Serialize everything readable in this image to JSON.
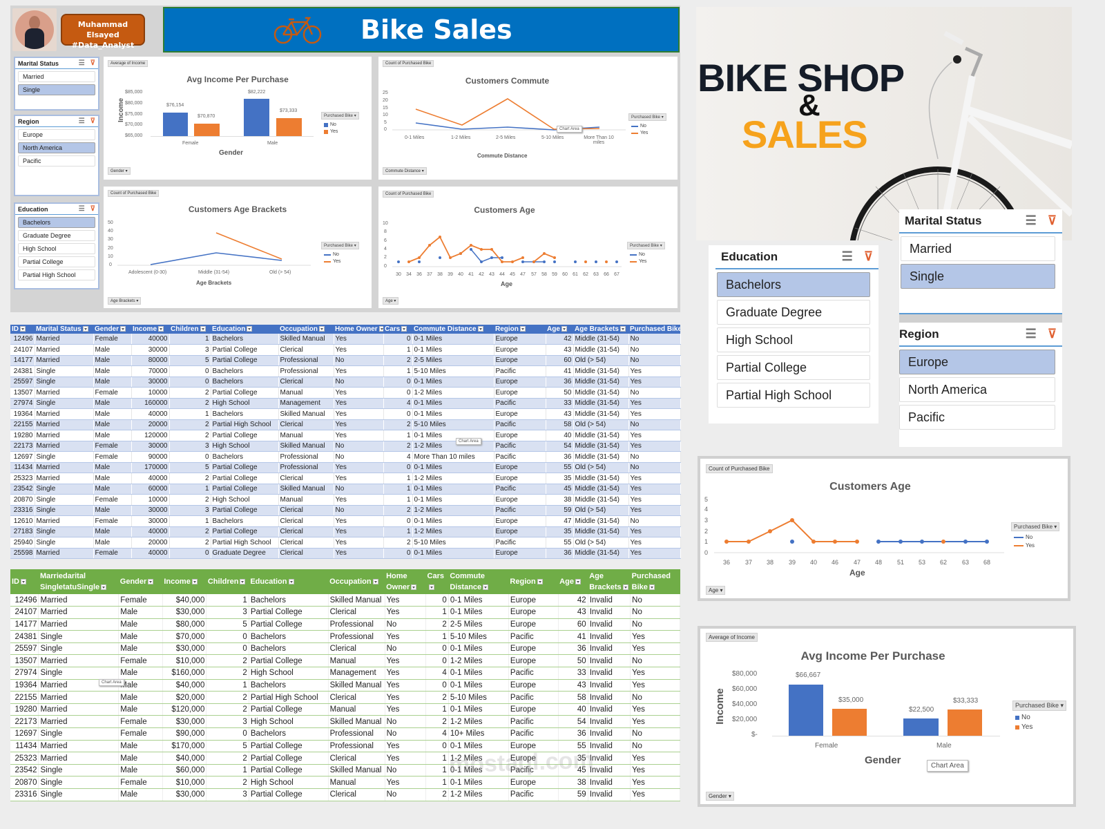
{
  "profile": {
    "name": "Muhammad Elsayed",
    "tag": "#Data_Analyst"
  },
  "banner": {
    "title": "Bike Sales",
    "icon": "bicycle-icon"
  },
  "hero": {
    "line1": "BIKE SHOP",
    "amp": "&",
    "line2": "SALES"
  },
  "colors": {
    "banner_blue": "#0070c0",
    "no": "#4472c4",
    "yes": "#ed7d31",
    "profile_orange": "#c55a11",
    "hero_orange": "#f6a21c",
    "slicer_selected": "#b4c6e7",
    "table1_header": "#4472c4",
    "table2_header": "#70ad47"
  },
  "slicers": {
    "marital": {
      "title": "Marital Status",
      "items": [
        "Married",
        "Single"
      ],
      "selected": [
        "Single"
      ]
    },
    "region": {
      "title": "Region",
      "items": [
        "Europe",
        "North America",
        "Pacific"
      ],
      "selected": [
        "North America"
      ]
    },
    "education": {
      "title": "Education",
      "items": [
        "Bachelors",
        "Graduate Degree",
        "High School",
        "Partial College",
        "Partial High School"
      ],
      "selected": [
        "Bachelors"
      ]
    }
  },
  "big_slicers": {
    "education": {
      "title": "Education",
      "items": [
        "Bachelors",
        "Graduate Degree",
        "High School",
        "Partial College",
        "Partial High School"
      ],
      "selected": [
        "Bachelors"
      ]
    },
    "marital": {
      "title": "Marital Status",
      "items": [
        "Married",
        "Single"
      ],
      "selected": [
        "Single"
      ]
    },
    "region": {
      "title": "Region",
      "items": [
        "Europe",
        "North America",
        "Pacific"
      ],
      "selected": [
        "Europe"
      ]
    }
  },
  "charts": {
    "income": {
      "field": "Average of Income",
      "title": "Avg Income Per Purchase",
      "ylabel": "Income",
      "xlabel": "Gender",
      "axis_btn": "Gender",
      "legend_title": "Purchased Bike",
      "legend": [
        "No",
        "Yes"
      ],
      "yticks": [
        "$85,000",
        "$80,000",
        "$75,000",
        "$70,000",
        "$65,000"
      ],
      "cats": [
        "Female",
        "Male"
      ],
      "labels": [
        "$76,154",
        "$70,870",
        "$82,222",
        "$73,333"
      ]
    },
    "commute": {
      "field": "Count of Purchased Bike",
      "title": "Customers Commute",
      "xlabel": "Commute Distance",
      "axis_btn": "Commute Distance",
      "legend_title": "Purchased Bike",
      "legend": [
        "No",
        "Yes"
      ],
      "yticks": [
        "25",
        "20",
        "15",
        "10",
        "5",
        "0"
      ],
      "cats": [
        "0-1 Miles",
        "1-2 Miles",
        "2-5 Miles",
        "5-10 Miles",
        "More Than 10 miles"
      ],
      "tooltip": "Chart Area"
    },
    "brackets": {
      "field": "Count of Purchased Bike",
      "title": "Customers Age Brackets",
      "xlabel": "Age Brackets",
      "axis_btn": "Age Brackets",
      "legend_title": "Purchased Bike",
      "legend": [
        "No",
        "Yes"
      ],
      "yticks": [
        "50",
        "40",
        "30",
        "20",
        "10",
        "0"
      ],
      "cats": [
        "Adolescent (0-30)",
        "Middle (31-54)",
        "Old (> 54)"
      ]
    },
    "age": {
      "field": "Count of Purchased Bike",
      "title": "Customers Age",
      "xlabel": "Age",
      "axis_btn": "Age",
      "legend_title": "Purchased Bike",
      "legend": [
        "No",
        "Yes"
      ],
      "yticks": [
        "10",
        "8",
        "6",
        "4",
        "2",
        "0"
      ]
    },
    "age2": {
      "field": "Count of Purchased Bike",
      "title": "Customers Age",
      "xlabel": "Age",
      "axis_btn": "Age",
      "legend_title": "Purchased Bike",
      "legend": [
        "No",
        "Yes"
      ],
      "yticks": [
        "5",
        "4",
        "3",
        "2",
        "1",
        "0"
      ]
    },
    "income2": {
      "field": "Average of Income",
      "title": "Avg Income Per Purchase",
      "ylabel": "Income",
      "xlabel": "Gender",
      "axis_btn": "Gender",
      "legend_title": "Purchased Bike",
      "legend": [
        "No",
        "Yes"
      ],
      "yticks": [
        "$80,000",
        "$60,000",
        "$40,000",
        "$20,000",
        "$-"
      ],
      "cats": [
        "Female",
        "Male"
      ],
      "labels": [
        "$66,667",
        "$35,000",
        "$22,500",
        "$33,333"
      ],
      "tooltip": "Chart Area"
    }
  },
  "chart_data": [
    {
      "type": "bar",
      "title": "Avg Income Per Purchase",
      "xlabel": "Gender",
      "ylabel": "Income",
      "categories": [
        "Female",
        "Male"
      ],
      "series": [
        {
          "name": "No",
          "values": [
            76154,
            82222
          ]
        },
        {
          "name": "Yes",
          "values": [
            70870,
            73333
          ]
        }
      ],
      "ylim": [
        65000,
        85000
      ]
    },
    {
      "type": "line",
      "title": "Customers Commute",
      "xlabel": "Commute Distance",
      "ylabel": "",
      "categories": [
        "0-1 Miles",
        "1-2 Miles",
        "2-5 Miles",
        "5-10 Miles",
        "More Than 10 miles"
      ],
      "series": [
        {
          "name": "No",
          "values": [
            8,
            3,
            5,
            1,
            5
          ]
        },
        {
          "name": "Yes",
          "values": [
            15,
            4,
            22,
            2,
            4
          ]
        }
      ],
      "ylim": [
        0,
        25
      ]
    },
    {
      "type": "line",
      "title": "Customers Age Brackets",
      "xlabel": "Age Brackets",
      "ylabel": "",
      "categories": [
        "Adolescent (0-30)",
        "Middle (31-54)",
        "Old (> 54)"
      ],
      "series": [
        {
          "name": "No",
          "values": [
            1,
            15,
            6
          ]
        },
        {
          "name": "Yes",
          "values": [
            null,
            38,
            8
          ]
        }
      ],
      "ylim": [
        0,
        50
      ]
    },
    {
      "type": "line",
      "title": "Customers Age",
      "xlabel": "Age",
      "ylabel": "",
      "categories": [
        "30",
        "34",
        "36",
        "37",
        "38",
        "39",
        "40",
        "41",
        "42",
        "43",
        "44",
        "45",
        "47",
        "57",
        "58",
        "59",
        "60",
        "61",
        "62",
        "63",
        "66",
        "67"
      ],
      "series": [
        {
          "name": "No",
          "values": [
            1,
            null,
            1,
            null,
            2,
            null,
            3,
            null,
            4,
            1,
            2,
            2,
            null,
            1,
            1,
            1,
            null,
            1,
            null,
            1,
            null,
            1
          ]
        },
        {
          "name": "Yes",
          "values": [
            null,
            1,
            2,
            6,
            8,
            2,
            4,
            6,
            3,
            3,
            1,
            1,
            2,
            null,
            1,
            3,
            2,
            null,
            1,
            null,
            1,
            null
          ]
        }
      ],
      "ylim": [
        0,
        10
      ]
    },
    {
      "type": "line",
      "title": "Customers Age",
      "xlabel": "Age",
      "ylabel": "",
      "categories": [
        "36",
        "37",
        "38",
        "39",
        "40",
        "46",
        "47",
        "48",
        "51",
        "53",
        "62",
        "63",
        "68"
      ],
      "series": [
        {
          "name": "No",
          "values": [
            null,
            null,
            null,
            1,
            null,
            null,
            null,
            1,
            1,
            1,
            null,
            1,
            1
          ]
        },
        {
          "name": "Yes",
          "values": [
            1,
            1,
            3,
            4,
            1,
            1,
            1,
            null,
            null,
            null,
            1,
            null,
            null
          ]
        }
      ],
      "ylim": [
        0,
        5
      ]
    },
    {
      "type": "bar",
      "title": "Avg Income Per Purchase",
      "xlabel": "Gender",
      "ylabel": "Income",
      "categories": [
        "Female",
        "Male"
      ],
      "series": [
        {
          "name": "No",
          "values": [
            66667,
            22500
          ]
        },
        {
          "name": "Yes",
          "values": [
            35000,
            33333
          ]
        }
      ],
      "ylim": [
        0,
        80000
      ]
    }
  ],
  "table1": {
    "headers": [
      "ID",
      "Marital Status",
      "Gender",
      "Income",
      "Children",
      "Education",
      "Occupation",
      "Home Owner",
      "Cars",
      "Commute Distance",
      "Region",
      "Age",
      "Age Brackets",
      "Purchased Bike"
    ],
    "rows": [
      [
        "12496",
        "Married",
        "Female",
        "40000",
        "1",
        "Bachelors",
        "Skilled Manual",
        "Yes",
        "0",
        "0-1 Miles",
        "Europe",
        "42",
        "Middle (31-54)",
        "No"
      ],
      [
        "24107",
        "Married",
        "Male",
        "30000",
        "3",
        "Partial College",
        "Clerical",
        "Yes",
        "1",
        "0-1 Miles",
        "Europe",
        "43",
        "Middle (31-54)",
        "No"
      ],
      [
        "14177",
        "Married",
        "Male",
        "80000",
        "5",
        "Partial College",
        "Professional",
        "No",
        "2",
        "2-5 Miles",
        "Europe",
        "60",
        "Old (> 54)",
        "No"
      ],
      [
        "24381",
        "Single",
        "Male",
        "70000",
        "0",
        "Bachelors",
        "Professional",
        "Yes",
        "1",
        "5-10 Miles",
        "Pacific",
        "41",
        "Middle (31-54)",
        "Yes"
      ],
      [
        "25597",
        "Single",
        "Male",
        "30000",
        "0",
        "Bachelors",
        "Clerical",
        "No",
        "0",
        "0-1 Miles",
        "Europe",
        "36",
        "Middle (31-54)",
        "Yes"
      ],
      [
        "13507",
        "Married",
        "Female",
        "10000",
        "2",
        "Partial College",
        "Manual",
        "Yes",
        "0",
        "1-2 Miles",
        "Europe",
        "50",
        "Middle (31-54)",
        "No"
      ],
      [
        "27974",
        "Single",
        "Male",
        "160000",
        "2",
        "High School",
        "Management",
        "Yes",
        "4",
        "0-1 Miles",
        "Pacific",
        "33",
        "Middle (31-54)",
        "Yes"
      ],
      [
        "19364",
        "Married",
        "Male",
        "40000",
        "1",
        "Bachelors",
        "Skilled Manual",
        "Yes",
        "0",
        "0-1 Miles",
        "Europe",
        "43",
        "Middle (31-54)",
        "Yes"
      ],
      [
        "22155",
        "Married",
        "Male",
        "20000",
        "2",
        "Partial High School",
        "Clerical",
        "Yes",
        "2",
        "5-10 Miles",
        "Pacific",
        "58",
        "Old (> 54)",
        "No"
      ],
      [
        "19280",
        "Married",
        "Male",
        "120000",
        "2",
        "Partial College",
        "Manual",
        "Yes",
        "1",
        "0-1 Miles",
        "Europe",
        "40",
        "Middle (31-54)",
        "Yes"
      ],
      [
        "22173",
        "Married",
        "Female",
        "30000",
        "3",
        "High School",
        "Skilled Manual",
        "No",
        "2",
        "1-2 Miles",
        "Pacific",
        "54",
        "Middle (31-54)",
        "Yes"
      ],
      [
        "12697",
        "Single",
        "Female",
        "90000",
        "0",
        "Bachelors",
        "Professional",
        "No",
        "4",
        "More Than 10 miles",
        "Pacific",
        "36",
        "Middle (31-54)",
        "No"
      ],
      [
        "11434",
        "Married",
        "Male",
        "170000",
        "5",
        "Partial College",
        "Professional",
        "Yes",
        "0",
        "0-1 Miles",
        "Europe",
        "55",
        "Old (> 54)",
        "No"
      ],
      [
        "25323",
        "Married",
        "Male",
        "40000",
        "2",
        "Partial College",
        "Clerical",
        "Yes",
        "1",
        "1-2 Miles",
        "Europe",
        "35",
        "Middle (31-54)",
        "Yes"
      ],
      [
        "23542",
        "Single",
        "Male",
        "60000",
        "1",
        "Partial College",
        "Skilled Manual",
        "No",
        "1",
        "0-1 Miles",
        "Pacific",
        "45",
        "Middle (31-54)",
        "Yes"
      ],
      [
        "20870",
        "Single",
        "Female",
        "10000",
        "2",
        "High School",
        "Manual",
        "Yes",
        "1",
        "0-1 Miles",
        "Europe",
        "38",
        "Middle (31-54)",
        "Yes"
      ],
      [
        "23316",
        "Single",
        "Male",
        "30000",
        "3",
        "Partial College",
        "Clerical",
        "No",
        "2",
        "1-2 Miles",
        "Pacific",
        "59",
        "Old (> 54)",
        "Yes"
      ],
      [
        "12610",
        "Married",
        "Female",
        "30000",
        "1",
        "Bachelors",
        "Clerical",
        "Yes",
        "0",
        "0-1 Miles",
        "Europe",
        "47",
        "Middle (31-54)",
        "No"
      ],
      [
        "27183",
        "Single",
        "Male",
        "40000",
        "2",
        "Partial College",
        "Clerical",
        "Yes",
        "1",
        "1-2 Miles",
        "Europe",
        "35",
        "Middle (31-54)",
        "Yes"
      ],
      [
        "25940",
        "Single",
        "Male",
        "20000",
        "2",
        "Partial High School",
        "Clerical",
        "Yes",
        "2",
        "5-10 Miles",
        "Pacific",
        "55",
        "Old (> 54)",
        "Yes"
      ],
      [
        "25598",
        "Married",
        "Female",
        "40000",
        "0",
        "Graduate Degree",
        "Clerical",
        "Yes",
        "0",
        "0-1 Miles",
        "Europe",
        "36",
        "Middle (31-54)",
        "Yes"
      ]
    ],
    "tooltip": "Chart Area"
  },
  "table2": {
    "headers": [
      "ID",
      "Marriedarital SingletatuSingle",
      "Gender",
      "Income",
      "Children",
      "Education",
      "Occupation",
      "Home Owner",
      "Cars",
      "Commute Distance",
      "Region",
      "Age",
      "Age Brackets",
      "Purchased Bike"
    ],
    "rows": [
      [
        "12496",
        "Married",
        "Female",
        "$40,000",
        "1",
        "Bachelors",
        "Skilled Manual",
        "Yes",
        "0",
        "0-1 Miles",
        "Europe",
        "42",
        "Invalid",
        "No"
      ],
      [
        "24107",
        "Married",
        "Male",
        "$30,000",
        "3",
        "Partial College",
        "Clerical",
        "Yes",
        "1",
        "0-1 Miles",
        "Europe",
        "43",
        "Invalid",
        "No"
      ],
      [
        "14177",
        "Married",
        "Male",
        "$80,000",
        "5",
        "Partial College",
        "Professional",
        "No",
        "2",
        "2-5 Miles",
        "Europe",
        "60",
        "Invalid",
        "No"
      ],
      [
        "24381",
        "Single",
        "Male",
        "$70,000",
        "0",
        "Bachelors",
        "Professional",
        "Yes",
        "1",
        "5-10 Miles",
        "Pacific",
        "41",
        "Invalid",
        "Yes"
      ],
      [
        "25597",
        "Single",
        "Male",
        "$30,000",
        "0",
        "Bachelors",
        "Clerical",
        "No",
        "0",
        "0-1 Miles",
        "Europe",
        "36",
        "Invalid",
        "Yes"
      ],
      [
        "13507",
        "Married",
        "Female",
        "$10,000",
        "2",
        "Partial College",
        "Manual",
        "Yes",
        "0",
        "1-2 Miles",
        "Europe",
        "50",
        "Invalid",
        "No"
      ],
      [
        "27974",
        "Single",
        "Male",
        "$160,000",
        "2",
        "High School",
        "Management",
        "Yes",
        "4",
        "0-1 Miles",
        "Pacific",
        "33",
        "Invalid",
        "Yes"
      ],
      [
        "19364",
        "Married",
        "Male",
        "$40,000",
        "1",
        "Bachelors",
        "Skilled Manual",
        "Yes",
        "0",
        "0-1 Miles",
        "Europe",
        "43",
        "Invalid",
        "Yes"
      ],
      [
        "22155",
        "Married",
        "Male",
        "$20,000",
        "2",
        "Partial High School",
        "Clerical",
        "Yes",
        "2",
        "5-10 Miles",
        "Pacific",
        "58",
        "Invalid",
        "No"
      ],
      [
        "19280",
        "Married",
        "Male",
        "$120,000",
        "2",
        "Partial College",
        "Manual",
        "Yes",
        "1",
        "0-1 Miles",
        "Europe",
        "40",
        "Invalid",
        "Yes"
      ],
      [
        "22173",
        "Married",
        "Female",
        "$30,000",
        "3",
        "High School",
        "Skilled Manual",
        "No",
        "2",
        "1-2 Miles",
        "Pacific",
        "54",
        "Invalid",
        "Yes"
      ],
      [
        "12697",
        "Single",
        "Female",
        "$90,000",
        "0",
        "Bachelors",
        "Professional",
        "No",
        "4",
        "10+ Miles",
        "Pacific",
        "36",
        "Invalid",
        "No"
      ],
      [
        "11434",
        "Married",
        "Male",
        "$170,000",
        "5",
        "Partial College",
        "Professional",
        "Yes",
        "0",
        "0-1 Miles",
        "Europe",
        "55",
        "Invalid",
        "No"
      ],
      [
        "25323",
        "Married",
        "Male",
        "$40,000",
        "2",
        "Partial College",
        "Clerical",
        "Yes",
        "1",
        "1-2 Miles",
        "Europe",
        "35",
        "Invalid",
        "Yes"
      ],
      [
        "23542",
        "Single",
        "Male",
        "$60,000",
        "1",
        "Partial College",
        "Skilled Manual",
        "No",
        "1",
        "0-1 Miles",
        "Pacific",
        "45",
        "Invalid",
        "Yes"
      ],
      [
        "20870",
        "Single",
        "Female",
        "$10,000",
        "2",
        "High School",
        "Manual",
        "Yes",
        "1",
        "0-1 Miles",
        "Europe",
        "38",
        "Invalid",
        "Yes"
      ],
      [
        "23316",
        "Single",
        "Male",
        "$30,000",
        "3",
        "Partial College",
        "Clerical",
        "No",
        "2",
        "1-2 Miles",
        "Pacific",
        "59",
        "Invalid",
        "Yes"
      ]
    ],
    "tooltip": "Chart Area"
  },
  "watermark": "mostaql.com"
}
